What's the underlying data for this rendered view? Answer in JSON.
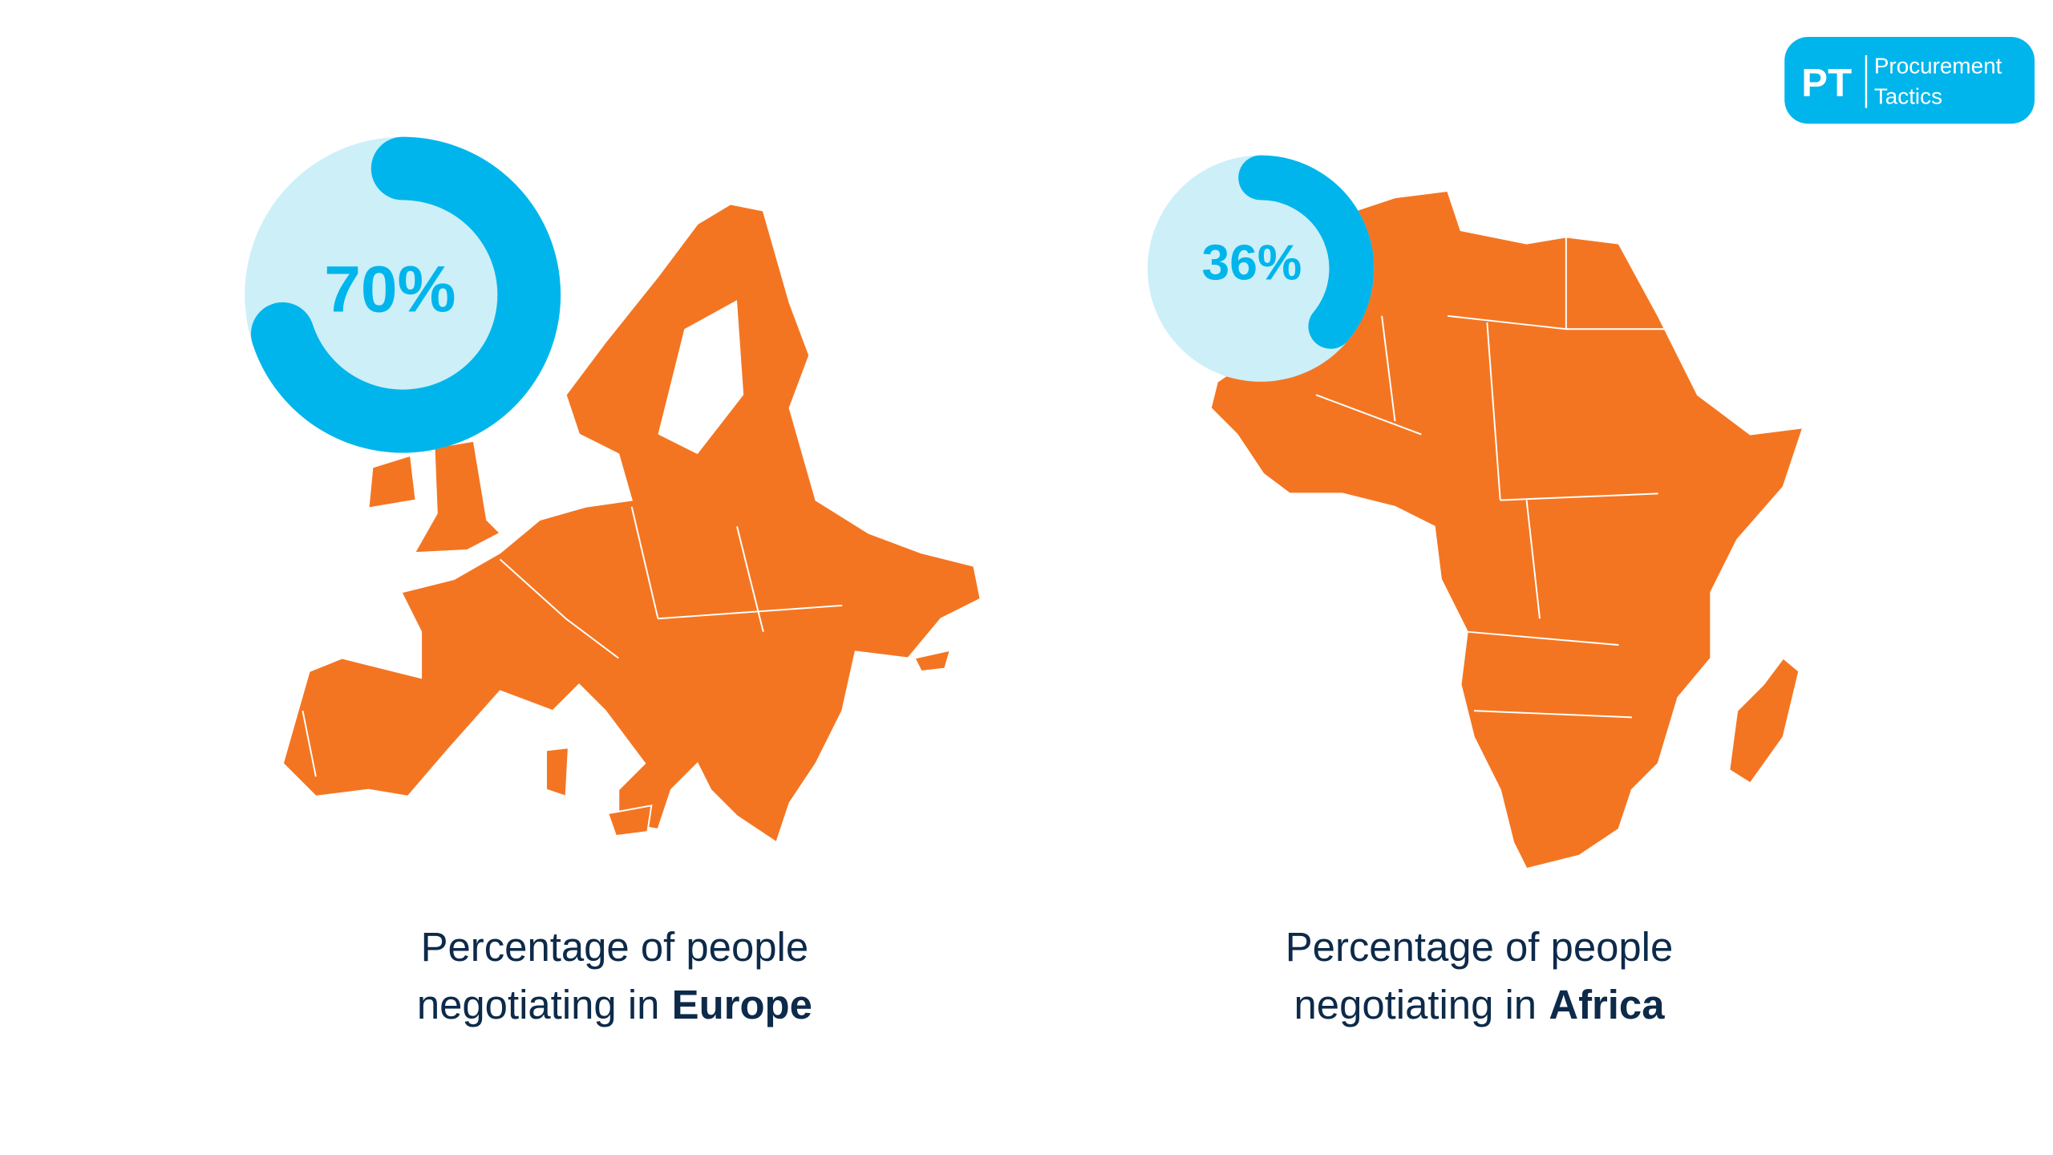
{
  "chart_data": [
    {
      "type": "donut",
      "values": [
        70
      ],
      "value_labels": [
        "70%"
      ],
      "color": "#00b5ec",
      "track_color": "#cdeff8",
      "caption": [
        "Percentage of people",
        "negotiating in"
      ],
      "region": "Europe"
    },
    {
      "type": "donut",
      "values": [
        36
      ],
      "value_labels": [
        "36%"
      ],
      "color": "#00b5ec",
      "track_color": "#cdeff8",
      "caption": [
        "Percentage of people",
        "negotiating in"
      ],
      "region": "Africa"
    }
  ],
  "logo": {
    "mark": "PT",
    "name": [
      "Procurement",
      "Tactics"
    ]
  }
}
